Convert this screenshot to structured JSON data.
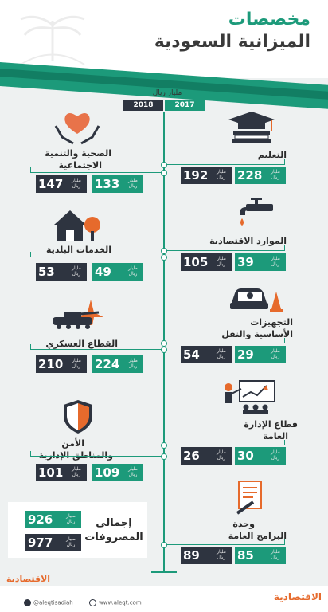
{
  "title_line1": "مخصصات",
  "title_line2": "الميزانية السعودية",
  "unit_header": "مليار ريال",
  "years": {
    "left": "2018",
    "right": "2017"
  },
  "unit": "مليار ريال",
  "sectors": {
    "health": {
      "label_1": "الصحية والتنمية",
      "label_2": "الاجتماعية",
      "v2017": "133",
      "v2018": "147"
    },
    "education": {
      "label_1": "التعليم",
      "v2017": "228",
      "v2018": "192"
    },
    "water": {
      "label_1": "الموارد الاقتصادية",
      "v2017": "39",
      "v2018": "105"
    },
    "municipal": {
      "label_1": "الخدمات البلدية",
      "v2017": "49",
      "v2018": "53"
    },
    "infra": {
      "label_1": "التجهيزات",
      "label_2": "الأساسية والنقل",
      "v2017": "29",
      "v2018": "54"
    },
    "military": {
      "label_1": "القطاع العسكري",
      "v2017": "224",
      "v2018": "210"
    },
    "admin": {
      "label_1": "قطاع الإدارة",
      "label_2": "العامة",
      "v2017": "30",
      "v2018": "26"
    },
    "security": {
      "label_1": "الأمن",
      "label_2": "والمناطق الإدارية",
      "v2017": "109",
      "v2018": "101"
    },
    "programs": {
      "label_1": "وحدة",
      "label_2": "البرامج العامة",
      "v2017": "85",
      "v2018": "89"
    }
  },
  "total": {
    "label_1": "إجمالي",
    "label_2": "المصروفات",
    "v2017": "926",
    "v2018": "977"
  },
  "footer": {
    "twitter": "@aleqtisadiah",
    "website": "www.aleqt.com",
    "brand": "الاقتصادية",
    "brand_left": "الاقتصادية"
  },
  "colors": {
    "green": "#1c9a7a",
    "dark": "#2e3440",
    "orange": "#e66a2c",
    "heart": "#e8734a"
  }
}
